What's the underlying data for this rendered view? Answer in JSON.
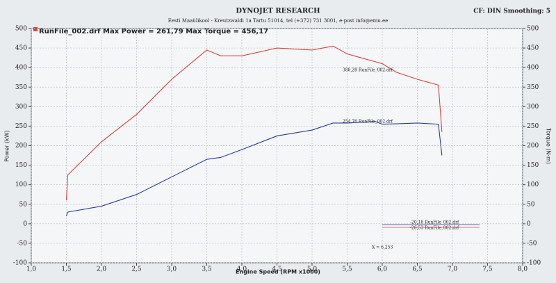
{
  "chart_data": {
    "type": "line",
    "title": "DYNOJET RESEARCH",
    "subtitle": "Eesti Maaülikool - Kreutzwaldi 1a Tartu 51014, tel (+372) 731 3001, e-post info@emu.ee",
    "settings_label": "CF: DIN  Smoothing: 5",
    "header": "RunFile_002.drf Max Power = 261,79   Max Torque = 456,17",
    "x_label": "Engine Speed (RPM x1000)",
    "y_label": "Power (kW)",
    "y2_label": "Torque (N·m)",
    "annotations": [
      "388,28 RunFile_002.drf",
      "254,76 RunFile_002.drf",
      "-20,18 RunFile_002.drf",
      "-26,53 RunFile_002.drf",
      "X = 6,253"
    ],
    "x": [
      1.5,
      1.52,
      2.0,
      2.5,
      3.0,
      3.5,
      3.7,
      4.0,
      4.5,
      5.0,
      5.3,
      5.5,
      5.9,
      6.0,
      6.2,
      6.5,
      6.8,
      6.85
    ],
    "series": [
      {
        "name": "Power",
        "color": "#2b3a9c",
        "values": [
          20,
          30,
          45,
          75,
          120,
          165,
          170,
          190,
          225,
          240,
          258,
          258,
          262,
          255,
          256,
          258,
          255,
          175
        ]
      },
      {
        "name": "Torque",
        "color": "#d9413a",
        "axis": "y2",
        "values": [
          60,
          125,
          210,
          280,
          370,
          445,
          430,
          430,
          450,
          445,
          455,
          435,
          415,
          410,
          388,
          370,
          355,
          235
        ]
      }
    ],
    "xlim": [
      1,
      8
    ],
    "xticks": [
      {
        "value": 1,
        "label": "1,0"
      },
      {
        "value": 1.5,
        "label": "1,5"
      },
      {
        "value": 2,
        "label": "2,0"
      },
      {
        "value": 2.5,
        "label": "2,5"
      },
      {
        "value": 3,
        "label": "3,0"
      },
      {
        "value": 3.5,
        "label": "3,5"
      },
      {
        "value": 4,
        "label": "4,0"
      },
      {
        "value": 4.5,
        "label": "4,5"
      },
      {
        "value": 5,
        "label": "5,0"
      },
      {
        "value": 5.5,
        "label": "5,5"
      },
      {
        "value": 6,
        "label": "6,0"
      },
      {
        "value": 6.5,
        "label": "6,5"
      },
      {
        "value": 7,
        "label": "7,0"
      },
      {
        "value": 7.5,
        "label": "7,5"
      },
      {
        "value": 8,
        "label": "8,0"
      }
    ],
    "ylim": [
      -100,
      500
    ],
    "yticks": [
      -100,
      -50,
      0,
      50,
      100,
      150,
      200,
      250,
      300,
      350,
      400,
      450,
      500
    ],
    "y2lim": [
      -100,
      500
    ],
    "y2ticks": [
      -100,
      -50,
      0,
      50,
      100,
      150,
      200,
      250,
      300,
      350,
      400,
      450,
      500
    ],
    "grid": true
  }
}
